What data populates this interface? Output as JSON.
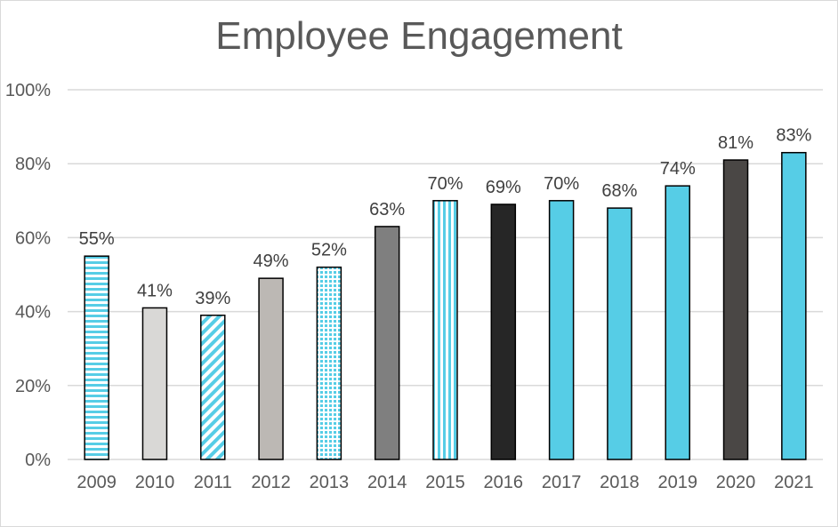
{
  "chart_data": {
    "type": "bar",
    "title": "Employee Engagement",
    "xlabel": "",
    "ylabel": "",
    "ylim": [
      0,
      100
    ],
    "yticks": [
      0,
      20,
      40,
      60,
      80,
      100
    ],
    "ytick_labels": [
      "0%",
      "20%",
      "40%",
      "60%",
      "80%",
      "100%"
    ],
    "grid": true,
    "legend": "none",
    "categories": [
      "2009",
      "2010",
      "2011",
      "2012",
      "2013",
      "2014",
      "2015",
      "2016",
      "2017",
      "2018",
      "2019",
      "2020",
      "2021"
    ],
    "values": [
      55,
      41,
      39,
      49,
      52,
      63,
      70,
      69,
      70,
      68,
      74,
      81,
      83
    ],
    "data_labels": [
      "55%",
      "41%",
      "39%",
      "49%",
      "52%",
      "63%",
      "70%",
      "69%",
      "70%",
      "68%",
      "74%",
      "81%",
      "83%"
    ],
    "bar_fills": [
      "hstripe-blue",
      "#d9d8d6",
      "diag-blue",
      "#bcb8b4",
      "grid-blue",
      "#7f7f7f",
      "vstripe-blue",
      "#262626",
      "#56cde6",
      "#56cde6",
      "#56cde6",
      "#4a4745",
      "#56cde6"
    ],
    "colors": {
      "accent": "#56cde6",
      "grid": "#d9d9d9",
      "text": "#595959",
      "bar_outline": "#000000"
    }
  }
}
